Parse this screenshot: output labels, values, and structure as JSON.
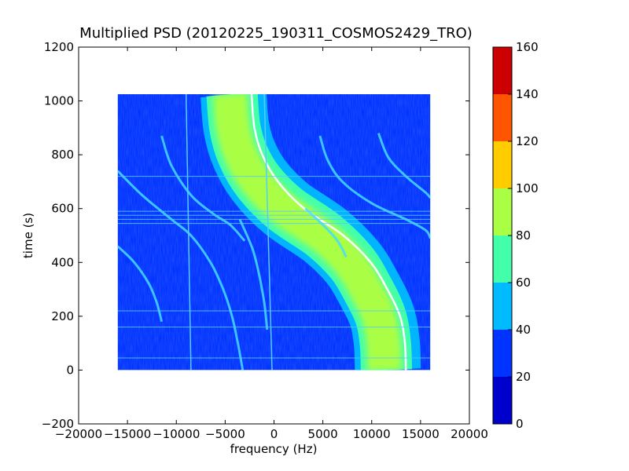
{
  "chart_data": {
    "type": "heatmap",
    "title": "Multiplied PSD (20120225_190311_COSMOS2429_TRO)",
    "xlabel": "frequency (Hz)",
    "ylabel": "time (s)",
    "xlim": [
      -20000,
      20000
    ],
    "ylim": [
      -200,
      1200
    ],
    "x_ticks": [
      -20000,
      -15000,
      -10000,
      -5000,
      0,
      5000,
      10000,
      15000,
      20000
    ],
    "x_tick_labels": [
      "−20000",
      "−15000",
      "−10000",
      "−5000",
      "0",
      "5000",
      "10000",
      "15000",
      "20000"
    ],
    "y_ticks": [
      -200,
      0,
      200,
      400,
      600,
      800,
      1000,
      1200
    ],
    "y_tick_labels": [
      "−200",
      "0",
      "200",
      "400",
      "600",
      "800",
      "1000",
      "1200"
    ],
    "data_extent": {
      "x": [
        -16000,
        16000
      ],
      "y": [
        0,
        1025
      ]
    },
    "grid": false,
    "colorbar": {
      "levels": [
        0,
        20,
        40,
        60,
        80,
        100,
        120,
        140,
        160
      ],
      "tick_labels": [
        "0",
        "20",
        "40",
        "60",
        "80",
        "100",
        "120",
        "140",
        "160"
      ],
      "colors": [
        "#0000cc",
        "#0033ff",
        "#00bbff",
        "#44ffaa",
        "#aaff44",
        "#ffcc00",
        "#ff5500",
        "#cc0000"
      ]
    },
    "background_level_color": "#0033ff",
    "main_trace": {
      "description_points": [
        {
          "t": 1025,
          "f": -3900
        },
        {
          "t": 900,
          "f": -3600
        },
        {
          "t": 800,
          "f": -2800
        },
        {
          "t": 700,
          "f": -1200
        },
        {
          "t": 600,
          "f": 1500
        },
        {
          "t": 500,
          "f": 5500
        },
        {
          "t": 400,
          "f": 8300
        },
        {
          "t": 300,
          "f": 10000
        },
        {
          "t": 200,
          "f": 11300
        },
        {
          "t": 100,
          "f": 11800
        },
        {
          "t": 0,
          "f": 11900
        }
      ],
      "band_width_hz": 5000
    },
    "secondary_traces": [
      {
        "points": [
          {
            "t": 740,
            "f": -16000
          },
          {
            "t": 650,
            "f": -13500
          },
          {
            "t": 560,
            "f": -10500
          },
          {
            "t": 500,
            "f": -8500
          },
          {
            "t": 400,
            "f": -6500
          },
          {
            "t": 300,
            "f": -5200
          },
          {
            "t": 200,
            "f": -4300
          },
          {
            "t": 100,
            "f": -3700
          },
          {
            "t": 0,
            "f": -3200
          }
        ]
      },
      {
        "points": [
          {
            "t": 870,
            "f": -11500
          },
          {
            "t": 760,
            "f": -10500
          },
          {
            "t": 650,
            "f": -8500
          },
          {
            "t": 580,
            "f": -6200
          },
          {
            "t": 540,
            "f": -4500
          },
          {
            "t": 480,
            "f": -3000
          }
        ]
      },
      {
        "points": [
          {
            "t": 460,
            "f": -16000
          },
          {
            "t": 400,
            "f": -14300
          },
          {
            "t": 320,
            "f": -12800
          },
          {
            "t": 250,
            "f": -12000
          },
          {
            "t": 180,
            "f": -11500
          }
        ]
      },
      {
        "points": [
          {
            "t": 560,
            "f": -3500
          },
          {
            "t": 450,
            "f": -2200
          },
          {
            "t": 350,
            "f": -1500
          },
          {
            "t": 250,
            "f": -1000
          },
          {
            "t": 150,
            "f": -700
          }
        ]
      },
      {
        "points": [
          {
            "t": 600,
            "f": 3200
          },
          {
            "t": 540,
            "f": 5000
          },
          {
            "t": 480,
            "f": 6500
          },
          {
            "t": 420,
            "f": 7400
          }
        ]
      },
      {
        "points": [
          {
            "t": 870,
            "f": 4700
          },
          {
            "t": 780,
            "f": 5500
          },
          {
            "t": 700,
            "f": 7000
          },
          {
            "t": 620,
            "f": 10000
          },
          {
            "t": 560,
            "f": 13500
          },
          {
            "t": 520,
            "f": 15500
          },
          {
            "t": 490,
            "f": 16000
          }
        ]
      },
      {
        "points": [
          {
            "t": 880,
            "f": 10700
          },
          {
            "t": 790,
            "f": 11700
          },
          {
            "t": 720,
            "f": 13500
          },
          {
            "t": 660,
            "f": 15500
          },
          {
            "t": 640,
            "f": 16000
          }
        ]
      }
    ],
    "vertical_lines": [
      {
        "f_top": -9000,
        "f_bottom": -8500
      },
      {
        "f_top": -1000,
        "f_bottom": -200
      }
    ],
    "horizontal_lines": [
      45,
      160,
      220,
      545,
      560,
      575,
      590,
      720
    ]
  }
}
